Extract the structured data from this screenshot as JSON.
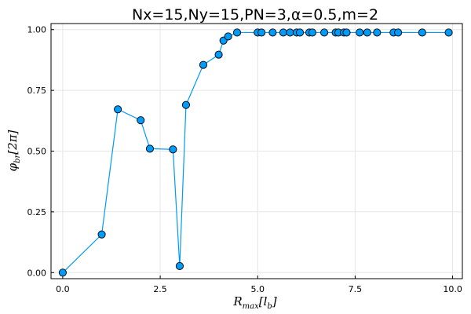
{
  "chart_data": {
    "type": "line",
    "title": "Nx=15,Ny=15,PN=3,α=0.5,m=2",
    "xlabel": "R_max[l_b]",
    "ylabel": "φ_br[2π]",
    "xlim": [
      -0.3,
      10.25
    ],
    "ylim": [
      -0.025,
      1.025
    ],
    "xticks": [
      0.0,
      2.5,
      5.0,
      7.5,
      10.0
    ],
    "xtick_labels": [
      "0.0",
      "2.5",
      "5.0",
      "7.5",
      "10.0"
    ],
    "yticks": [
      0.0,
      0.25,
      0.5,
      0.75,
      1.0
    ],
    "ytick_labels": [
      "0.00",
      "0.25",
      "0.50",
      "0.75",
      "1.00"
    ],
    "grid": true,
    "legend": "none",
    "color": "#009af9",
    "series": [
      {
        "x": [
          0.0,
          1.0,
          1.414,
          2.0,
          2.236,
          2.828,
          3.0,
          3.162,
          3.606,
          4.0,
          4.123,
          4.243,
          4.472,
          5.0,
          5.099,
          5.385,
          5.657,
          5.831,
          6.0,
          6.083,
          6.325,
          6.403,
          6.708,
          7.0,
          7.071,
          7.211,
          7.28,
          7.616,
          7.81,
          8.062,
          8.485,
          8.602,
          9.22,
          9.899
        ],
        "y": [
          0.0,
          0.157,
          0.672,
          0.627,
          0.51,
          0.507,
          0.027,
          0.69,
          0.855,
          0.897,
          0.955,
          0.972,
          0.988,
          0.988,
          0.988,
          0.988,
          0.988,
          0.988,
          0.988,
          0.988,
          0.988,
          0.988,
          0.988,
          0.988,
          0.988,
          0.988,
          0.988,
          0.988,
          0.988,
          0.988,
          0.988,
          0.988,
          0.988,
          0.988
        ]
      }
    ]
  }
}
